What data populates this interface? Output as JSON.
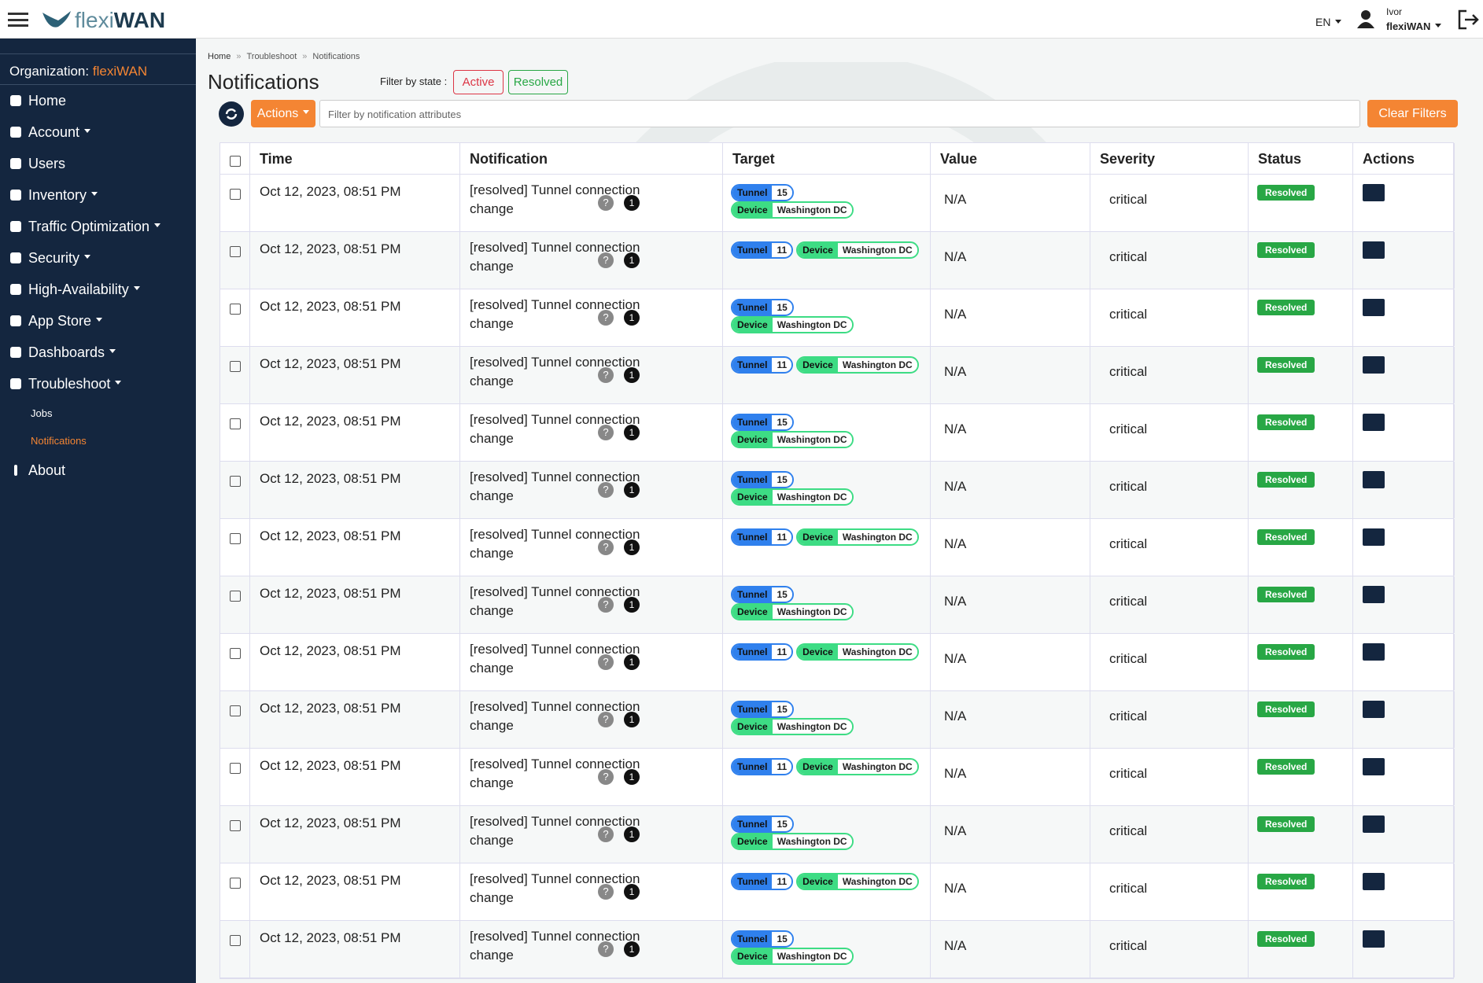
{
  "header": {
    "logo_a": "flexi",
    "logo_b": "WAN",
    "language": "EN",
    "user_name": "Ivor",
    "user_org": "flexiWAN"
  },
  "sidebar": {
    "org_label": "Organization:",
    "org_name": "flexiWAN",
    "items": [
      {
        "label": "Home",
        "caret": false
      },
      {
        "label": "Account",
        "caret": true
      },
      {
        "label": "Users",
        "caret": false
      },
      {
        "label": "Inventory",
        "caret": true
      },
      {
        "label": "Traffic Optimization",
        "caret": true
      },
      {
        "label": "Security",
        "caret": true
      },
      {
        "label": "High-Availability",
        "caret": true
      },
      {
        "label": "App Store",
        "caret": true
      },
      {
        "label": "Dashboards",
        "caret": true
      },
      {
        "label": "Troubleshoot",
        "caret": true
      }
    ],
    "subitems": [
      "Jobs",
      "Notifications"
    ],
    "about": "About"
  },
  "breadcrumbs": [
    "Home",
    "Troubleshoot",
    "Notifications"
  ],
  "page": {
    "title": "Notifications",
    "filter_label": "Filter by state :",
    "filter_active": "Active",
    "filter_resolved": "Resolved",
    "actions": "Actions",
    "search_placeholder": "Filter by notification attributes",
    "clear": "Clear Filters"
  },
  "table": {
    "columns": [
      "Time",
      "Notification",
      "Target",
      "Value",
      "Severity",
      "Status",
      "Actions"
    ],
    "rows": [
      {
        "time": "Oct 12, 2023, 08:51 PM",
        "notification": "[resolved] Tunnel connection change",
        "count": "1",
        "tunnel_label": "Tunnel",
        "tunnel": "15",
        "device_label": "Device",
        "device": "Washington DC",
        "value": "N/A",
        "severity": "critical",
        "status": "Resolved"
      },
      {
        "time": "Oct 12, 2023, 08:51 PM",
        "notification": "[resolved] Tunnel connection change",
        "count": "1",
        "tunnel_label": "Tunnel",
        "tunnel": "11",
        "device_label": "Device",
        "device": "Washington DC",
        "value": "N/A",
        "severity": "critical",
        "status": "Resolved"
      },
      {
        "time": "Oct 12, 2023, 08:51 PM",
        "notification": "[resolved] Tunnel connection change",
        "count": "1",
        "tunnel_label": "Tunnel",
        "tunnel": "15",
        "device_label": "Device",
        "device": "Washington DC",
        "value": "N/A",
        "severity": "critical",
        "status": "Resolved"
      },
      {
        "time": "Oct 12, 2023, 08:51 PM",
        "notification": "[resolved] Tunnel connection change",
        "count": "1",
        "tunnel_label": "Tunnel",
        "tunnel": "11",
        "device_label": "Device",
        "device": "Washington DC",
        "value": "N/A",
        "severity": "critical",
        "status": "Resolved"
      },
      {
        "time": "Oct 12, 2023, 08:51 PM",
        "notification": "[resolved] Tunnel connection change",
        "count": "1",
        "tunnel_label": "Tunnel",
        "tunnel": "15",
        "device_label": "Device",
        "device": "Washington DC",
        "value": "N/A",
        "severity": "critical",
        "status": "Resolved"
      },
      {
        "time": "Oct 12, 2023, 08:51 PM",
        "notification": "[resolved] Tunnel connection change",
        "count": "1",
        "tunnel_label": "Tunnel",
        "tunnel": "15",
        "device_label": "Device",
        "device": "Washington DC",
        "value": "N/A",
        "severity": "critical",
        "status": "Resolved"
      },
      {
        "time": "Oct 12, 2023, 08:51 PM",
        "notification": "[resolved] Tunnel connection change",
        "count": "1",
        "tunnel_label": "Tunnel",
        "tunnel": "11",
        "device_label": "Device",
        "device": "Washington DC",
        "value": "N/A",
        "severity": "critical",
        "status": "Resolved"
      },
      {
        "time": "Oct 12, 2023, 08:51 PM",
        "notification": "[resolved] Tunnel connection change",
        "count": "1",
        "tunnel_label": "Tunnel",
        "tunnel": "15",
        "device_label": "Device",
        "device": "Washington DC",
        "value": "N/A",
        "severity": "critical",
        "status": "Resolved"
      },
      {
        "time": "Oct 12, 2023, 08:51 PM",
        "notification": "[resolved] Tunnel connection change",
        "count": "1",
        "tunnel_label": "Tunnel",
        "tunnel": "11",
        "device_label": "Device",
        "device": "Washington DC",
        "value": "N/A",
        "severity": "critical",
        "status": "Resolved"
      },
      {
        "time": "Oct 12, 2023, 08:51 PM",
        "notification": "[resolved] Tunnel connection change",
        "count": "1",
        "tunnel_label": "Tunnel",
        "tunnel": "15",
        "device_label": "Device",
        "device": "Washington DC",
        "value": "N/A",
        "severity": "critical",
        "status": "Resolved"
      },
      {
        "time": "Oct 12, 2023, 08:51 PM",
        "notification": "[resolved] Tunnel connection change",
        "count": "1",
        "tunnel_label": "Tunnel",
        "tunnel": "11",
        "device_label": "Device",
        "device": "Washington DC",
        "value": "N/A",
        "severity": "critical",
        "status": "Resolved"
      },
      {
        "time": "Oct 12, 2023, 08:51 PM",
        "notification": "[resolved] Tunnel connection change",
        "count": "1",
        "tunnel_label": "Tunnel",
        "tunnel": "15",
        "device_label": "Device",
        "device": "Washington DC",
        "value": "N/A",
        "severity": "critical",
        "status": "Resolved"
      },
      {
        "time": "Oct 12, 2023, 08:51 PM",
        "notification": "[resolved] Tunnel connection change",
        "count": "1",
        "tunnel_label": "Tunnel",
        "tunnel": "11",
        "device_label": "Device",
        "device": "Washington DC",
        "value": "N/A",
        "severity": "critical",
        "status": "Resolved"
      },
      {
        "time": "Oct 12, 2023, 08:51 PM",
        "notification": "[resolved] Tunnel connection change",
        "count": "1",
        "tunnel_label": "Tunnel",
        "tunnel": "15",
        "device_label": "Device",
        "device": "Washington DC",
        "value": "N/A",
        "severity": "critical",
        "status": "Resolved"
      }
    ]
  }
}
